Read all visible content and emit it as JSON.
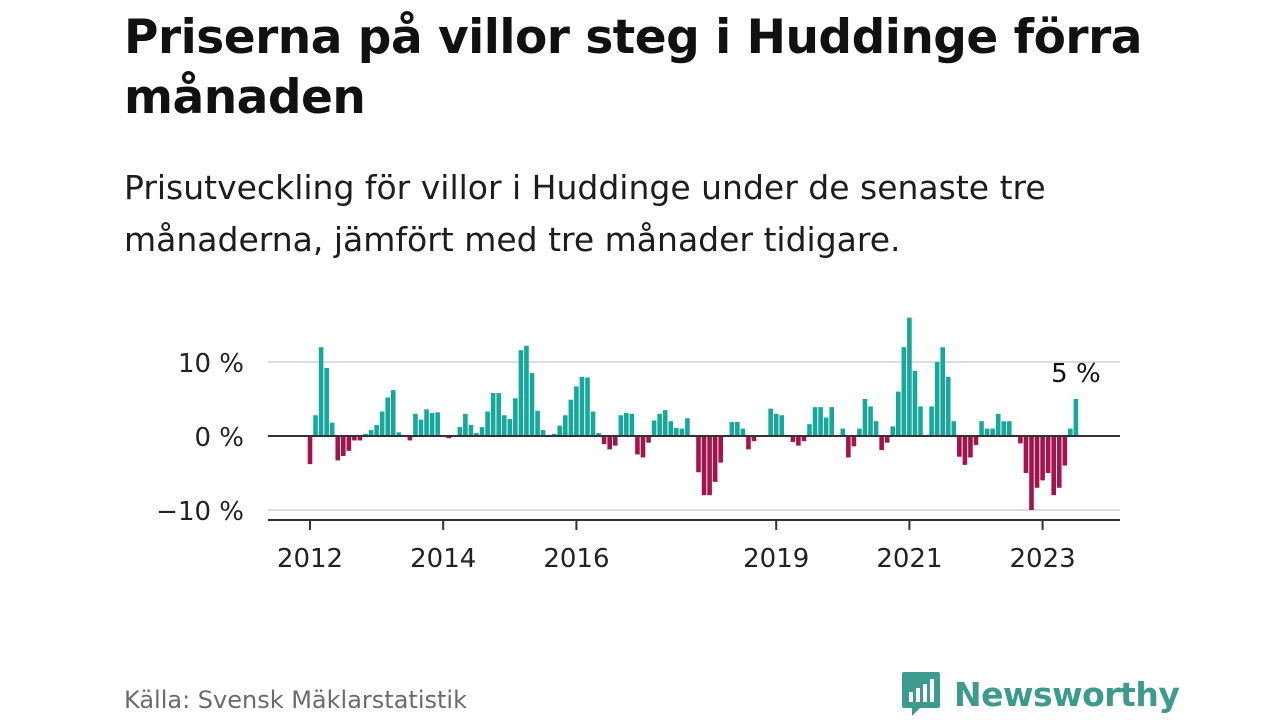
{
  "title": "Priserna på villor steg i Huddinge förra månaden",
  "subtitle": "Prisutveckling för villor i Huddinge under de senaste tre månaderna, jämfört med tre månader tidigare.",
  "source": "Källa: Svensk Mäklarstatistik",
  "brand": {
    "name": "Newsworthy",
    "icon": "newsworthy-logo-icon"
  },
  "colors": {
    "positive": "#16a89b",
    "negative": "#a5134c",
    "axis": "#333333",
    "grid": "#dddddd",
    "brand": "#3d9b8e"
  },
  "chart_data": {
    "type": "bar",
    "x_start": {
      "year": 2012,
      "month": 1
    },
    "values": [
      -3.8,
      2.8,
      12,
      9.2,
      1.8,
      -3.3,
      -2.7,
      -2,
      -0.6,
      -0.6,
      0.3,
      0.8,
      1.5,
      3.3,
      5.2,
      6.2,
      0.5,
      0,
      -0.6,
      3,
      2.2,
      3.6,
      3.1,
      3.2,
      0,
      -0.3,
      0,
      1.2,
      3,
      1.5,
      0.4,
      1.2,
      3.3,
      5.8,
      5.8,
      2.8,
      2.3,
      5.1,
      11.6,
      12.2,
      8.5,
      3.4,
      0.8,
      0,
      0.3,
      1.4,
      2.8,
      4.9,
      6.7,
      8,
      7.9,
      3.3,
      0.4,
      -1.1,
      -1.8,
      -1.3,
      2.8,
      3.1,
      3,
      -2.5,
      -2.9,
      -0.9,
      2.1,
      3,
      3.5,
      2,
      1.1,
      1,
      2.4,
      0,
      -4.9,
      -8,
      -8,
      -6.2,
      -3.6,
      0,
      1.9,
      1.9,
      1,
      -1.8,
      -0.7,
      0,
      0,
      3.7,
      3,
      2.8,
      0,
      -0.8,
      -1.3,
      -0.7,
      1.6,
      3.9,
      3.9,
      2.5,
      3.9,
      0,
      1,
      -2.9,
      -1.4,
      1,
      5,
      4,
      2,
      -1.9,
      -0.9,
      1.3,
      6,
      12,
      16,
      8.8,
      4,
      0,
      4,
      10,
      12,
      8,
      2,
      -2.8,
      -3.9,
      -2.9,
      -1.2,
      2,
      1,
      1,
      3,
      2,
      2,
      0,
      -1,
      -5,
      -10,
      -7,
      -6,
      -5,
      -8,
      -7,
      -4,
      1,
      5
    ],
    "y_ticks": [
      {
        "value": 10,
        "label": "10 %"
      },
      {
        "value": 0,
        "label": "0 %"
      },
      {
        "value": -10,
        "label": "−10 %"
      }
    ],
    "ylim": [
      -11,
      16
    ],
    "x_ticks": [
      {
        "year": 2012,
        "label": "2012"
      },
      {
        "year": 2014,
        "label": "2014"
      },
      {
        "year": 2016,
        "label": "2016"
      },
      {
        "year": 2019,
        "label": "2019"
      },
      {
        "year": 2021,
        "label": "2021"
      },
      {
        "year": 2023,
        "label": "2023"
      }
    ],
    "annotation": {
      "label": "5 %",
      "target": "last"
    },
    "xlabel": "",
    "ylabel": ""
  }
}
